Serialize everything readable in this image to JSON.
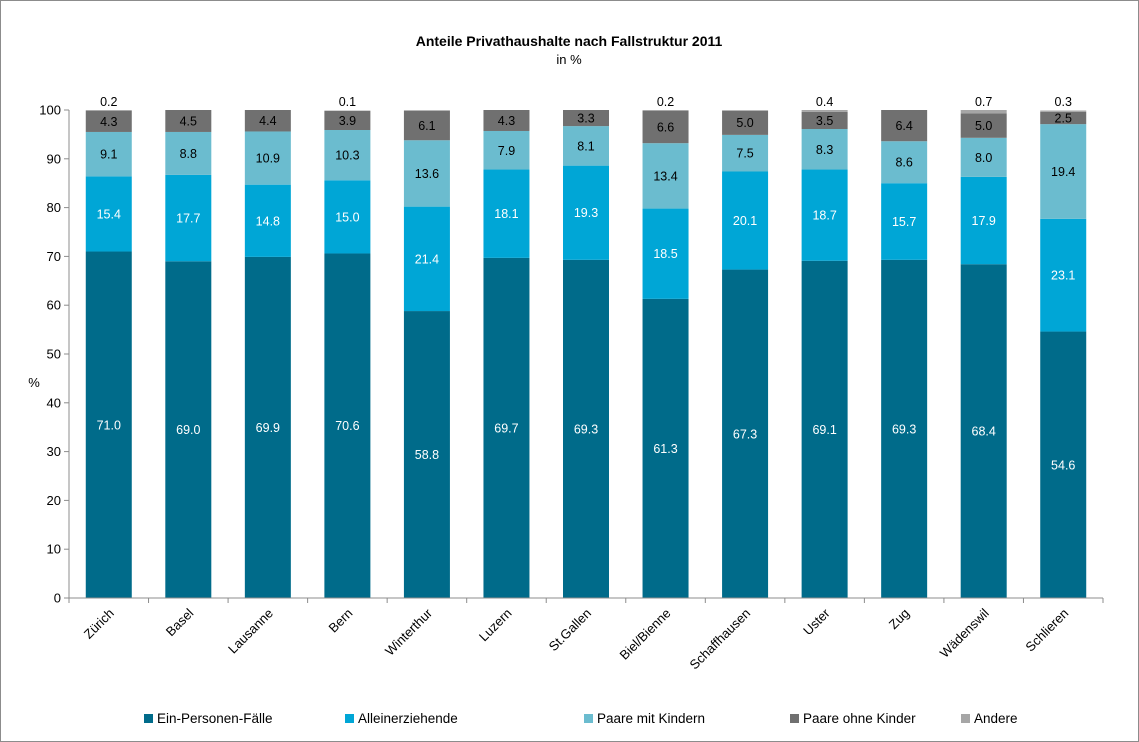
{
  "chart_data": {
    "type": "bar",
    "stacked": true,
    "title": "Anteile Privathaushalte nach Fallstruktur 2011",
    "subtitle": "in %",
    "ylabel": "%",
    "ylim": [
      0,
      100
    ],
    "yticks": [
      0,
      10,
      20,
      30,
      40,
      50,
      60,
      70,
      80,
      90,
      100
    ],
    "grid": false,
    "legend_position": "bottom",
    "categories": [
      "Zürich",
      "Basel",
      "Lausanne",
      "Bern",
      "Winterthur",
      "Luzern",
      "St.Gallen",
      "Biel/Bienne",
      "Schaffhausen",
      "Uster",
      "Zug",
      "Wädenswil",
      "Schlieren"
    ],
    "series": [
      {
        "name": "Ein-Personen-Fälle",
        "color": "#006b8a",
        "label_color": "#ffffff",
        "values": [
          71.0,
          69.0,
          69.9,
          70.6,
          58.8,
          69.7,
          69.3,
          61.3,
          67.3,
          69.1,
          69.3,
          68.4,
          54.6
        ]
      },
      {
        "name": "Alleinerziehende",
        "color": "#00a6d6",
        "label_color": "#ffffff",
        "values": [
          15.4,
          17.7,
          14.8,
          15.0,
          21.4,
          18.1,
          19.3,
          18.5,
          20.1,
          18.7,
          15.7,
          17.9,
          23.1
        ]
      },
      {
        "name": "Paare mit Kindern",
        "color": "#6bbccf",
        "label_color": "#000000",
        "values": [
          9.1,
          8.8,
          10.9,
          10.3,
          13.6,
          7.9,
          8.1,
          13.4,
          7.5,
          8.3,
          8.6,
          8.0,
          19.4
        ]
      },
      {
        "name": "Paare ohne Kinder",
        "color": "#707070",
        "label_color": "#000000",
        "values": [
          4.3,
          4.5,
          4.4,
          3.9,
          6.1,
          4.3,
          3.3,
          6.6,
          5.0,
          3.5,
          6.4,
          5.0,
          2.5
        ]
      },
      {
        "name": "Andere",
        "color": "#a6a6a6",
        "label_color": "#000000",
        "values": [
          0.2,
          null,
          null,
          0.1,
          null,
          null,
          null,
          0.2,
          null,
          0.4,
          null,
          0.7,
          0.3
        ]
      }
    ]
  }
}
